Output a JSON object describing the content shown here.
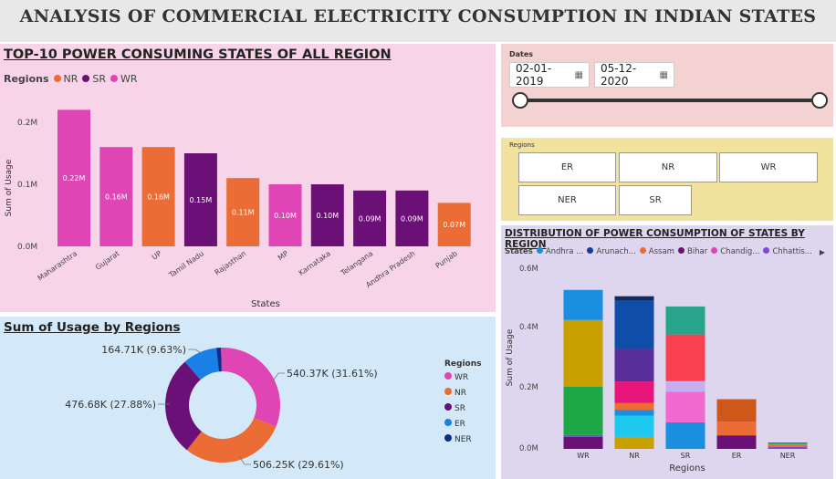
{
  "header": {
    "title": "ANALYSIS OF COMMERCIAL ELECTRICITY CONSUMPTION IN INDIAN STATES"
  },
  "colors": {
    "WR": "#e045b5",
    "NR": "#ec6c35",
    "SR": "#6a1077",
    "ER": "#1a7fe6",
    "NER": "#0e2d8a"
  },
  "top10": {
    "title": "TOP-10 POWER CONSUMING STATES OF ALL REGION",
    "legend_title": "Regions",
    "legend": [
      {
        "name": "NR",
        "color": "#ec6c35"
      },
      {
        "name": "SR",
        "color": "#6a1077"
      },
      {
        "name": "WR",
        "color": "#e045b5"
      }
    ],
    "ylabel": "Sum of Usage",
    "xlabel": "States",
    "yticks": [
      "0.2M",
      "0.1M",
      "0.0M"
    ]
  },
  "regions_donut": {
    "title": "Sum of Usage by Regions",
    "legend_title": "Regions",
    "labels": [
      "540.37K (31.61%)",
      "506.25K (29.61%)",
      "476.68K (27.88%)",
      "164.71K (9.63%)"
    ]
  },
  "dates": {
    "label": "Dates",
    "start": "02-01-2019",
    "end": "05-12-2020"
  },
  "slicer": {
    "label": "Regions",
    "buttons": [
      "ER",
      "NR",
      "WR",
      "NER",
      "SR"
    ]
  },
  "distribution": {
    "title": "DISTRIBUTION OF POWER CONSUMPTION OF STATES BY REGION",
    "legend_title": "States",
    "legend": [
      {
        "name": "Andhra ...",
        "color": "#1a8fe0"
      },
      {
        "name": "Arunach...",
        "color": "#1a3a9a"
      },
      {
        "name": "Assam",
        "color": "#ec6c35"
      },
      {
        "name": "Bihar",
        "color": "#6a1077"
      },
      {
        "name": "Chandig...",
        "color": "#e045b5"
      },
      {
        "name": "Chhattis...",
        "color": "#7a4ad8"
      }
    ],
    "legend_more": "▶",
    "ylabel": "Sum of Usage",
    "xlabel": "Regions",
    "yticks": [
      "0.6M",
      "0.4M",
      "0.2M",
      "0.0M"
    ]
  },
  "chart_data": [
    {
      "type": "bar",
      "title": "TOP-10 POWER CONSUMING STATES OF ALL REGION",
      "xlabel": "States",
      "ylabel": "Sum of Usage",
      "ylim": [
        0,
        0.24
      ],
      "unit": "M",
      "categories": [
        "Maharashtra",
        "Gujarat",
        "UP",
        "Tamil Nadu",
        "Rajasthan",
        "MP",
        "Karnataka",
        "Telangana",
        "Andhra Pradesh",
        "Punjab"
      ],
      "values": [
        0.22,
        0.16,
        0.16,
        0.15,
        0.11,
        0.1,
        0.1,
        0.09,
        0.09,
        0.07
      ],
      "data_labels": [
        "0.22M",
        "0.16M",
        "0.16M",
        "0.15M",
        "0.11M",
        "0.10M",
        "0.10M",
        "0.09M",
        "0.09M",
        "0.07M"
      ],
      "region": [
        "WR",
        "WR",
        "NR",
        "SR",
        "NR",
        "WR",
        "SR",
        "SR",
        "SR",
        "NR"
      ]
    },
    {
      "type": "pie",
      "title": "Sum of Usage by Regions",
      "categories": [
        "WR",
        "NR",
        "SR",
        "ER",
        "NER"
      ],
      "values": [
        540.37,
        506.25,
        476.68,
        164.71,
        22.0
      ],
      "unit": "K",
      "legend_position": "right"
    },
    {
      "type": "bar",
      "stacked": true,
      "title": "DISTRIBUTION OF POWER CONSUMPTION OF STATES BY REGION",
      "xlabel": "Regions",
      "ylabel": "Sum of Usage",
      "ylim": [
        0,
        0.6
      ],
      "unit": "M",
      "categories": [
        "WR",
        "NR",
        "SR",
        "ER",
        "NER"
      ],
      "stacks": [
        [
          {
            "color": "#6a1077",
            "value": 0.04
          },
          {
            "color": "#7a4ad8",
            "value": 0.006
          },
          {
            "color": "#1ea845",
            "value": 0.16
          },
          {
            "color": "#c9a000",
            "value": 0.222
          },
          {
            "color": "#1a8fe0",
            "value": 0.1
          }
        ],
        [
          {
            "color": "#c9a000",
            "value": 0.04
          },
          {
            "color": "#1ec8ee",
            "value": 0.07
          },
          {
            "color": "#1a8fe0",
            "value": 0.02
          },
          {
            "color": "#ec6c35",
            "value": 0.022
          },
          {
            "color": "#e8167a",
            "value": 0.072
          },
          {
            "color": "#5a2e9a",
            "value": 0.108
          },
          {
            "color": "#0e4ea8",
            "value": 0.16
          },
          {
            "color": "#152a5c",
            "value": 0.015
          }
        ],
        [
          {
            "color": "#1a8fe0",
            "value": 0.088
          },
          {
            "color": "#f06ad0",
            "value": 0.102
          },
          {
            "color": "#c8aef0",
            "value": 0.035
          },
          {
            "color": "#f84050",
            "value": 0.155
          },
          {
            "color": "#27a489",
            "value": 0.093
          }
        ],
        [
          {
            "color": "#6a1077",
            "value": 0.045
          },
          {
            "color": "#ec6c35",
            "value": 0.045
          },
          {
            "color": "#d0571a",
            "value": 0.075
          }
        ],
        [
          {
            "color": "#7a4ad8",
            "value": 0.006
          },
          {
            "color": "#ec6c35",
            "value": 0.006
          },
          {
            "color": "#4db870",
            "value": 0.006
          },
          {
            "color": "#555555",
            "value": 0.003
          }
        ]
      ]
    }
  ]
}
